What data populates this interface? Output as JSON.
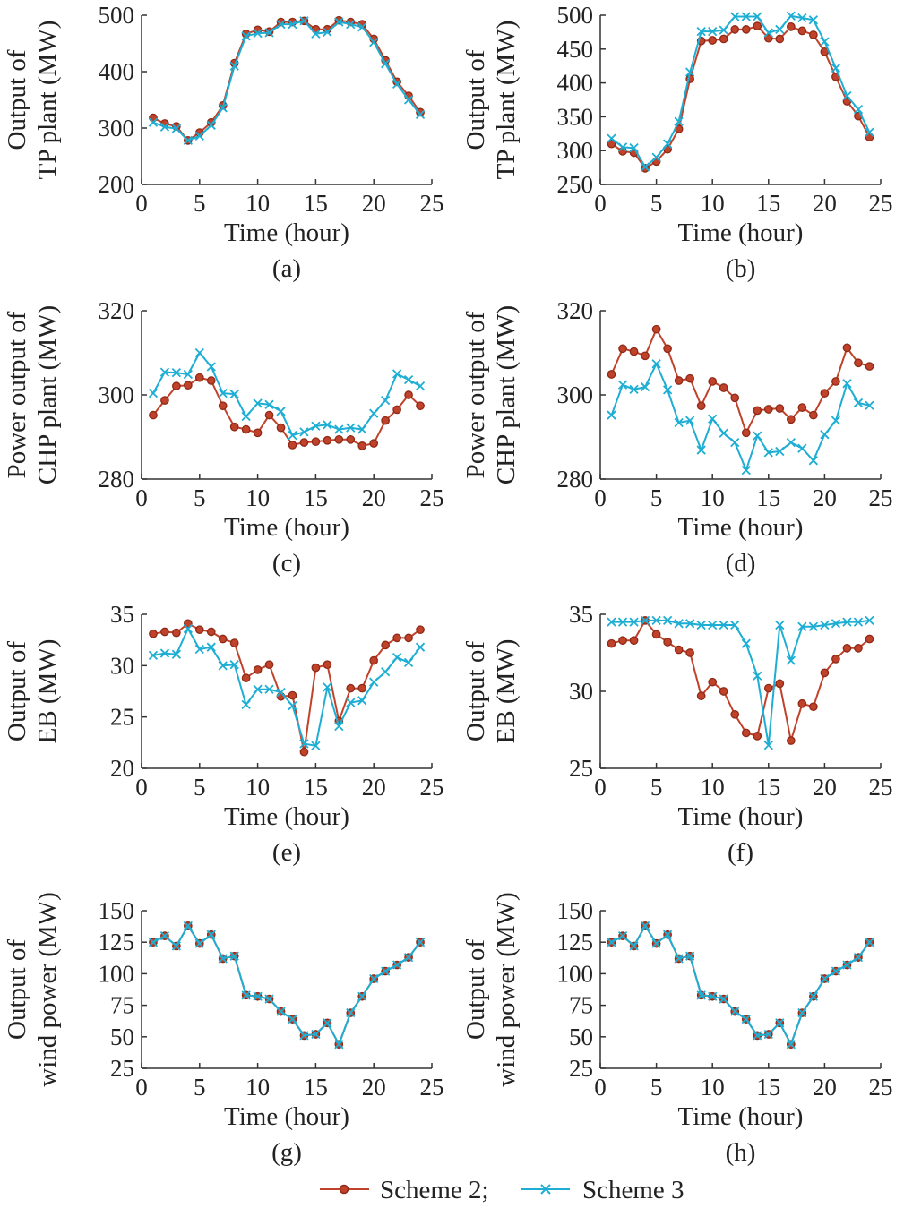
{
  "colors": {
    "scheme2": "#c0422a",
    "scheme3": "#1eaed3",
    "axis": "#333333"
  },
  "legend": {
    "series": [
      "Scheme 2;",
      "Scheme 3"
    ]
  },
  "chart_data": [
    {
      "id": "a",
      "type": "line",
      "caption": "(a)",
      "xlabel": "Time (hour)",
      "ylabel_lines": [
        "Output of",
        "TP plant (MW)"
      ],
      "xlim": [
        0,
        25
      ],
      "xticks": [
        0,
        5,
        10,
        15,
        20,
        25
      ],
      "ylim": [
        200,
        500
      ],
      "yticks": [
        200,
        300,
        400,
        500
      ],
      "x": [
        1,
        2,
        3,
        4,
        5,
        6,
        7,
        8,
        9,
        10,
        11,
        12,
        13,
        14,
        15,
        16,
        17,
        18,
        19,
        20,
        21,
        22,
        23,
        24
      ],
      "series": [
        {
          "name": "Scheme 2;",
          "marker": "circle",
          "values": [
            318,
            308,
            303,
            278,
            292,
            310,
            340,
            415,
            467,
            474,
            471,
            488,
            488,
            490,
            475,
            475,
            491,
            488,
            484,
            458,
            420,
            382,
            357,
            328
          ]
        },
        {
          "name": "Scheme 3",
          "marker": "x",
          "values": [
            310,
            302,
            299,
            278,
            286,
            305,
            336,
            410,
            463,
            468,
            469,
            484,
            484,
            490,
            467,
            470,
            488,
            484,
            479,
            452,
            414,
            378,
            350,
            324
          ]
        }
      ]
    },
    {
      "id": "b",
      "type": "line",
      "caption": "(b)",
      "xlabel": "Time (hour)",
      "ylabel_lines": [
        "Output of",
        "TP plant (MW)"
      ],
      "xlim": [
        0,
        25
      ],
      "xticks": [
        0,
        5,
        10,
        15,
        20,
        25
      ],
      "ylim": [
        250,
        500
      ],
      "yticks": [
        250,
        300,
        350,
        400,
        450,
        500
      ],
      "x": [
        1,
        2,
        3,
        4,
        5,
        6,
        7,
        8,
        9,
        10,
        11,
        12,
        13,
        14,
        15,
        16,
        17,
        18,
        19,
        20,
        21,
        22,
        23,
        24
      ],
      "series": [
        {
          "name": "Scheme 2;",
          "marker": "circle",
          "values": [
            310,
            299,
            297,
            274,
            284,
            302,
            332,
            406,
            462,
            463,
            465,
            479,
            479,
            484,
            466,
            465,
            483,
            477,
            471,
            446,
            409,
            373,
            351,
            320
          ]
        },
        {
          "name": "Scheme 3",
          "marker": "x",
          "values": [
            318,
            305,
            304,
            276,
            290,
            310,
            343,
            416,
            476,
            476,
            478,
            498,
            498,
            498,
            474,
            479,
            499,
            496,
            493,
            461,
            422,
            381,
            361,
            327
          ]
        }
      ]
    },
    {
      "id": "c",
      "type": "line",
      "caption": "(c)",
      "xlabel": "Time (hour)",
      "ylabel_lines": [
        "Power output of",
        "CHP plant (MW)"
      ],
      "xlim": [
        0,
        25
      ],
      "xticks": [
        0,
        5,
        10,
        15,
        20,
        25
      ],
      "ylim": [
        280,
        320
      ],
      "yticks": [
        280,
        300,
        320
      ],
      "x": [
        1,
        2,
        3,
        4,
        5,
        6,
        7,
        8,
        9,
        10,
        11,
        12,
        13,
        14,
        15,
        16,
        17,
        18,
        19,
        20,
        21,
        22,
        23,
        24
      ],
      "series": [
        {
          "name": "Scheme 2;",
          "marker": "circle",
          "values": [
            295.2,
            298.7,
            302.1,
            302.3,
            304.1,
            303.4,
            297.4,
            292.4,
            291.8,
            291.0,
            295.2,
            292.2,
            288.1,
            288.7,
            288.9,
            289.2,
            289.4,
            289.4,
            287.9,
            288.5,
            293.9,
            296.5,
            300.0,
            297.4
          ]
        },
        {
          "name": "Scheme 3",
          "marker": "x",
          "values": [
            300.4,
            305.4,
            305.3,
            304.9,
            310.0,
            306.7,
            300.4,
            300.2,
            294.9,
            298.0,
            297.7,
            296.1,
            290.4,
            291.2,
            292.6,
            292.9,
            291.8,
            292.2,
            291.8,
            295.6,
            298.7,
            305.0,
            303.6,
            302.1
          ]
        }
      ]
    },
    {
      "id": "d",
      "type": "line",
      "caption": "(d)",
      "xlabel": "Time (hour)",
      "ylabel_lines": [
        "Power output of",
        "CHP plant (MW)"
      ],
      "xlim": [
        0,
        25
      ],
      "xticks": [
        0,
        5,
        10,
        15,
        20,
        25
      ],
      "ylim": [
        280,
        320
      ],
      "yticks": [
        280,
        300,
        320
      ],
      "x": [
        1,
        2,
        3,
        4,
        5,
        6,
        7,
        8,
        9,
        10,
        11,
        12,
        13,
        14,
        15,
        16,
        17,
        18,
        19,
        20,
        21,
        22,
        23,
        24
      ],
      "series": [
        {
          "name": "Scheme 2;",
          "marker": "circle",
          "values": [
            304.9,
            311.0,
            310.3,
            309.3,
            315.6,
            311.0,
            303.4,
            303.9,
            297.4,
            303.2,
            301.7,
            299.3,
            291.0,
            296.3,
            296.6,
            296.8,
            294.2,
            297.0,
            295.2,
            300.4,
            303.2,
            311.2,
            307.6,
            306.8
          ]
        },
        {
          "name": "Scheme 3",
          "marker": "x",
          "values": [
            295.2,
            302.4,
            301.3,
            301.9,
            307.4,
            301.2,
            293.4,
            293.9,
            286.9,
            294.3,
            290.9,
            288.7,
            282.1,
            290.3,
            286.3,
            286.6,
            288.7,
            287.3,
            284.4,
            290.6,
            293.9,
            302.7,
            298.1,
            297.5
          ]
        }
      ]
    },
    {
      "id": "e",
      "type": "line",
      "caption": "(e)",
      "xlabel": "Time (hour)",
      "ylabel_lines": [
        "Output of",
        "EB (MW)"
      ],
      "xlim": [
        0,
        25
      ],
      "xticks": [
        0,
        5,
        10,
        15,
        20,
        25
      ],
      "ylim": [
        20,
        35
      ],
      "yticks": [
        20,
        25,
        30,
        35
      ],
      "x": [
        1,
        2,
        3,
        4,
        5,
        6,
        7,
        8,
        9,
        10,
        11,
        12,
        13,
        14,
        15,
        16,
        17,
        18,
        19,
        20,
        21,
        22,
        23,
        24
      ],
      "series": [
        {
          "name": "Scheme 2;",
          "marker": "circle",
          "values": [
            33.1,
            33.3,
            33.2,
            34.1,
            33.5,
            33.3,
            32.6,
            32.2,
            28.8,
            29.6,
            30.1,
            27.0,
            27.1,
            21.6,
            29.8,
            30.1,
            24.6,
            27.8,
            27.8,
            30.5,
            32.0,
            32.7,
            32.7,
            33.5
          ]
        },
        {
          "name": "Scheme 3",
          "marker": "x",
          "values": [
            31.0,
            31.2,
            31.1,
            33.6,
            31.6,
            31.8,
            30.0,
            30.1,
            26.2,
            27.7,
            27.7,
            27.4,
            26.1,
            22.4,
            22.2,
            27.9,
            24.1,
            26.4,
            26.6,
            28.4,
            29.4,
            30.8,
            30.3,
            31.8
          ]
        }
      ]
    },
    {
      "id": "f",
      "type": "line",
      "caption": "(f)",
      "xlabel": "Time (hour)",
      "ylabel_lines": [
        "Output of",
        "EB (MW)"
      ],
      "xlim": [
        0,
        25
      ],
      "xticks": [
        0,
        5,
        10,
        15,
        20,
        25
      ],
      "ylim": [
        25,
        35
      ],
      "yticks": [
        25,
        30,
        35
      ],
      "x": [
        1,
        2,
        3,
        4,
        5,
        6,
        7,
        8,
        9,
        10,
        11,
        12,
        13,
        14,
        15,
        16,
        17,
        18,
        19,
        20,
        21,
        22,
        23,
        24
      ],
      "series": [
        {
          "name": "Scheme 2;",
          "marker": "circle",
          "values": [
            33.1,
            33.3,
            33.3,
            34.6,
            33.7,
            33.2,
            32.7,
            32.5,
            29.7,
            30.6,
            30.0,
            28.5,
            27.3,
            27.1,
            30.2,
            30.5,
            26.8,
            29.2,
            29.0,
            31.2,
            32.1,
            32.8,
            32.8,
            33.4
          ]
        },
        {
          "name": "Scheme 3",
          "marker": "x",
          "values": [
            34.5,
            34.5,
            34.5,
            34.6,
            34.6,
            34.6,
            34.4,
            34.4,
            34.3,
            34.3,
            34.3,
            34.3,
            33.1,
            31.0,
            26.5,
            34.3,
            32.0,
            34.2,
            34.2,
            34.3,
            34.4,
            34.5,
            34.5,
            34.6
          ]
        }
      ]
    },
    {
      "id": "g",
      "type": "line",
      "caption": "(g)",
      "xlabel": "Time (hour)",
      "ylabel_lines": [
        "Output of",
        "wind power (MW)"
      ],
      "xlim": [
        0,
        25
      ],
      "xticks": [
        0,
        5,
        10,
        15,
        20,
        25
      ],
      "ylim": [
        25,
        150
      ],
      "yticks": [
        25,
        50,
        75,
        100,
        125,
        150
      ],
      "x": [
        1,
        2,
        3,
        4,
        5,
        6,
        7,
        8,
        9,
        10,
        11,
        12,
        13,
        14,
        15,
        16,
        17,
        18,
        19,
        20,
        21,
        22,
        23,
        24
      ],
      "series": [
        {
          "name": "Scheme 2;",
          "marker": "circle",
          "values": [
            125,
            130,
            122,
            138,
            124,
            131,
            112,
            114,
            83,
            82,
            80,
            70,
            64,
            51,
            52,
            61,
            44,
            69,
            82,
            96,
            102,
            107,
            113,
            125
          ]
        },
        {
          "name": "Scheme 3",
          "marker": "x",
          "values": [
            125,
            130,
            122,
            138,
            124,
            131,
            112,
            114,
            83,
            82,
            80,
            70,
            64,
            51,
            52,
            61,
            44,
            69,
            82,
            96,
            102,
            107,
            113,
            125
          ]
        }
      ]
    },
    {
      "id": "h",
      "type": "line",
      "caption": "(h)",
      "xlabel": "Time (hour)",
      "ylabel_lines": [
        "Output of",
        "wind power (MW)"
      ],
      "xlim": [
        0,
        25
      ],
      "xticks": [
        0,
        5,
        10,
        15,
        20,
        25
      ],
      "ylim": [
        25,
        150
      ],
      "yticks": [
        25,
        50,
        75,
        100,
        125,
        150
      ],
      "x": [
        1,
        2,
        3,
        4,
        5,
        6,
        7,
        8,
        9,
        10,
        11,
        12,
        13,
        14,
        15,
        16,
        17,
        18,
        19,
        20,
        21,
        22,
        23,
        24
      ],
      "series": [
        {
          "name": "Scheme 2;",
          "marker": "circle",
          "values": [
            125,
            130,
            122,
            138,
            124,
            131,
            112,
            114,
            83,
            82,
            80,
            70,
            64,
            51,
            52,
            61,
            44,
            69,
            82,
            96,
            102,
            107,
            113,
            125
          ]
        },
        {
          "name": "Scheme 3",
          "marker": "x",
          "values": [
            125,
            130,
            122,
            138,
            124,
            131,
            112,
            114,
            83,
            82,
            80,
            70,
            64,
            51,
            52,
            61,
            44,
            69,
            82,
            96,
            102,
            107,
            113,
            125
          ]
        }
      ]
    }
  ]
}
